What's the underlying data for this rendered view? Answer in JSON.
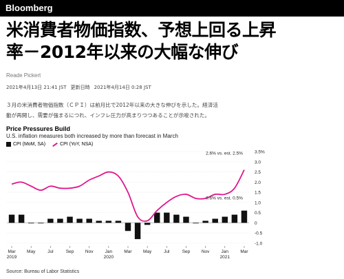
{
  "brand": {
    "logo": "Bloomberg"
  },
  "article": {
    "headline_line1": "米消費者物価指数、予想上回る上昇",
    "headline_line2": "率－2012年以来の大幅な伸び",
    "author": "Reade Pickert",
    "published": "2021年4月13日 21:41 JST",
    "updated_label": "更新日時",
    "updated": "2021年4月14日 0:28 JST",
    "body_line1": "３月の米消費者物価指数（ＣＰＩ）は前月比で2012年以来の大きな伸びを示した。経済活",
    "body_line2": "動が再開し、需要が強まるにつれ、インフレ圧力が高まりつつあることが示唆された。"
  },
  "chart_data": {
    "type": "bar",
    "title": "Price Pressures Build",
    "subtitle": "U.S. inflation measures both increased by more than forecast in March",
    "source": "Source: Bureau of Labor Statistics",
    "legend_position": "top-left",
    "ylim": [
      -1.0,
      3.5
    ],
    "yticks": [
      "3.5%",
      "3.0",
      "2.5",
      "2.0",
      "1.5",
      "1.0",
      "0.5",
      "0",
      "-0.5",
      "-1.0"
    ],
    "x_tick_labels": [
      {
        "index": 0,
        "label": "Mar",
        "year": "2019"
      },
      {
        "index": 2,
        "label": "May",
        "year": ""
      },
      {
        "index": 4,
        "label": "Jul",
        "year": ""
      },
      {
        "index": 6,
        "label": "Sep",
        "year": ""
      },
      {
        "index": 8,
        "label": "Nov",
        "year": ""
      },
      {
        "index": 10,
        "label": "Jan",
        "year": "2020"
      },
      {
        "index": 12,
        "label": "Mar",
        "year": ""
      },
      {
        "index": 14,
        "label": "May",
        "year": ""
      },
      {
        "index": 16,
        "label": "Jul",
        "year": ""
      },
      {
        "index": 18,
        "label": "Sep",
        "year": ""
      },
      {
        "index": 20,
        "label": "Nov",
        "year": ""
      },
      {
        "index": 22,
        "label": "Jan",
        "year": "2021"
      },
      {
        "index": 24,
        "label": "Mar",
        "year": ""
      }
    ],
    "series": [
      {
        "name": "CPI (MoM, SA)",
        "type": "bar",
        "color": "#111111",
        "values": [
          0.4,
          0.4,
          0.0,
          0.0,
          0.2,
          0.2,
          0.3,
          0.2,
          0.2,
          0.1,
          0.1,
          0.1,
          -0.4,
          -0.8,
          -0.1,
          0.5,
          0.5,
          0.4,
          0.3,
          0.0,
          0.1,
          0.2,
          0.3,
          0.4,
          0.6
        ]
      },
      {
        "name": "CPI (YoY, NSA)",
        "type": "line",
        "color": "#e0168c",
        "values": [
          1.9,
          2.0,
          1.8,
          1.6,
          1.8,
          1.7,
          1.7,
          1.8,
          2.1,
          2.3,
          2.5,
          2.3,
          1.5,
          0.3,
          0.1,
          0.6,
          1.0,
          1.3,
          1.4,
          1.2,
          1.2,
          1.4,
          1.4,
          1.7,
          2.6
        ]
      }
    ],
    "annotations": [
      {
        "text": "2.6% vs. est. 2.5%",
        "series": 1,
        "index": 24
      },
      {
        "text": "0.6% vs. est. 0.5%",
        "series": 0,
        "index": 24
      }
    ]
  }
}
